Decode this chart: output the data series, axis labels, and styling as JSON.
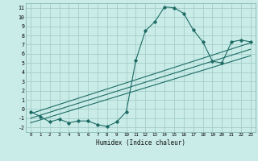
{
  "xlabel": "Humidex (Indice chaleur)",
  "background_color": "#c9ece8",
  "grid_color": "#9fc8c4",
  "line_color": "#1e6b65",
  "xlim": [
    -0.5,
    23.5
  ],
  "ylim": [
    -2.5,
    11.5
  ],
  "xticks": [
    0,
    1,
    2,
    3,
    4,
    5,
    6,
    7,
    8,
    9,
    10,
    11,
    12,
    13,
    14,
    15,
    16,
    17,
    18,
    19,
    20,
    21,
    22,
    23
  ],
  "yticks": [
    -2,
    -1,
    0,
    1,
    2,
    3,
    4,
    5,
    6,
    7,
    8,
    9,
    10,
    11
  ],
  "curve_x": [
    0,
    1,
    2,
    3,
    4,
    5,
    6,
    7,
    8,
    9,
    10,
    11,
    12,
    13,
    14,
    15,
    16,
    17,
    18,
    19,
    20,
    21,
    22,
    23
  ],
  "curve_y": [
    -0.3,
    -0.8,
    -1.4,
    -1.1,
    -1.5,
    -1.3,
    -1.3,
    -1.7,
    -1.9,
    -1.4,
    -0.3,
    5.3,
    8.5,
    9.5,
    11.1,
    11.0,
    10.4,
    8.6,
    7.3,
    5.2,
    5.0,
    7.3,
    7.5,
    7.3
  ],
  "line1_x": [
    0,
    23
  ],
  "line1_y": [
    -0.5,
    7.2
  ],
  "line2_x": [
    0,
    23
  ],
  "line2_y": [
    -1.0,
    6.5
  ],
  "line3_x": [
    0,
    23
  ],
  "line3_y": [
    -1.5,
    5.8
  ]
}
